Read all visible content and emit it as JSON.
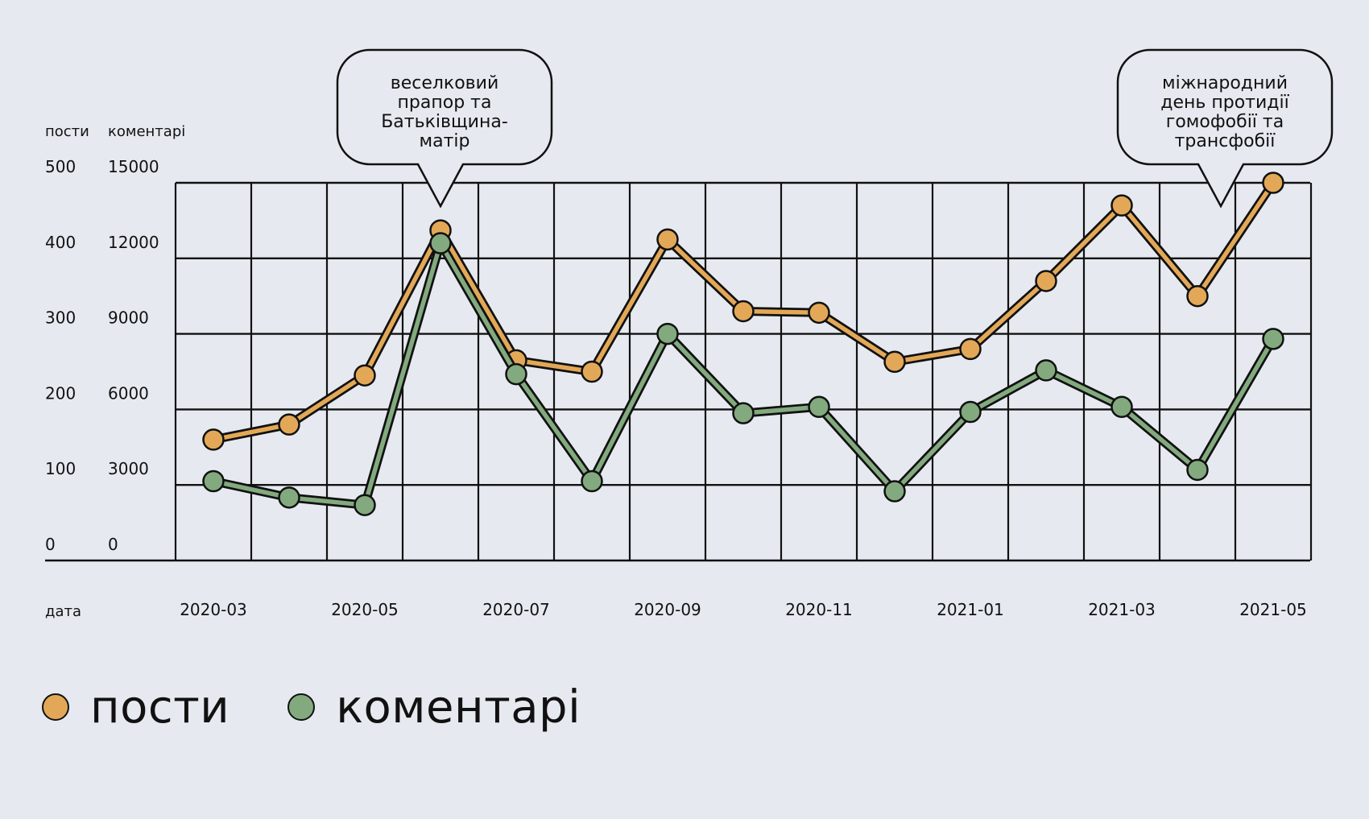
{
  "chart_data": {
    "type": "line",
    "axis_headers": {
      "left": "пости",
      "right": "коментарі",
      "x": "дата"
    },
    "left_ticks": [
      "0",
      "100",
      "200",
      "300",
      "400",
      "500"
    ],
    "right_ticks": [
      "0",
      "3000",
      "6000",
      "9000",
      "12000",
      "15000"
    ],
    "x_tick_labels": [
      "2020-03",
      "2020-05",
      "2020-07",
      "2020-09",
      "2020-11",
      "2021-01",
      "2021-03",
      "2021-05"
    ],
    "x": [
      "2020-03",
      "2020-04",
      "2020-05",
      "2020-06",
      "2020-07",
      "2020-08",
      "2020-09",
      "2020-10",
      "2020-11",
      "2020-12",
      "2021-01",
      "2021-02",
      "2021-03",
      "2021-04",
      "2021-05"
    ],
    "ylim_left": [
      0,
      500
    ],
    "ylim_right": [
      0,
      15000
    ],
    "series": [
      {
        "name": "пости",
        "axis": "left",
        "color": "#e3a857",
        "values": [
          160,
          180,
          245,
          437,
          265,
          250,
          425,
          330,
          328,
          263,
          280,
          370,
          470,
          350,
          500
        ]
      },
      {
        "name": "коментарі",
        "axis": "right",
        "color": "#82aa7e",
        "values": [
          3150,
          2500,
          2200,
          12600,
          7400,
          3150,
          9000,
          5850,
          6100,
          2750,
          5900,
          7550,
          6100,
          3600,
          8800
        ]
      }
    ],
    "annotations": [
      {
        "lines": [
          "веселковий",
          "прапор та",
          "Батьківщина-",
          "матір"
        ],
        "x": "2020-06"
      },
      {
        "lines": [
          "міжнародний",
          "день протидії",
          "гомофобії та",
          "трансфобії"
        ],
        "x": "2021-05"
      }
    ],
    "legend_placement": "bottom-left"
  },
  "legend": {
    "items": [
      {
        "label": "пости",
        "color": "#e3a857"
      },
      {
        "label": "коментарі",
        "color": "#82aa7e"
      }
    ]
  }
}
